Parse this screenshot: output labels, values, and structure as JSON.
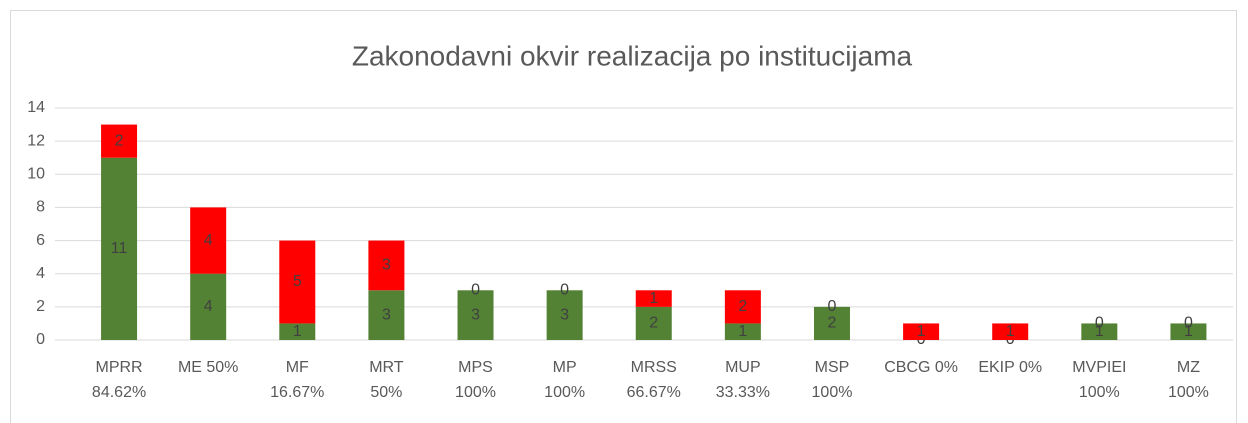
{
  "chart_data": {
    "type": "bar",
    "stacked": true,
    "title": "Zakonodavni okvir realizacija po institucijama",
    "categories": [
      [
        "MPRR",
        "84.62%"
      ],
      [
        "ME 50%"
      ],
      [
        "MF",
        "16.67%"
      ],
      [
        "MRT",
        "50%"
      ],
      [
        "MPS",
        "100%"
      ],
      [
        "MP",
        "100%"
      ],
      [
        "MRSS",
        "66.67%"
      ],
      [
        "MUP",
        "33.33%"
      ],
      [
        "MSP",
        "100%"
      ],
      [
        "CBCG 0%"
      ],
      [
        "EKIP 0%"
      ],
      [
        "MVPIEI",
        "100%"
      ],
      [
        "MZ",
        "100%"
      ]
    ],
    "series": [
      {
        "color": "#548235",
        "values": [
          11,
          4,
          1,
          3,
          3,
          3,
          2,
          1,
          2,
          0,
          0,
          1,
          1
        ]
      },
      {
        "color": "#ff0000",
        "values": [
          2,
          4,
          5,
          3,
          0,
          0,
          1,
          2,
          0,
          1,
          1,
          0,
          0
        ]
      }
    ],
    "ylim": [
      0,
      14
    ],
    "yticks": [
      0,
      2,
      4,
      6,
      8,
      10,
      12,
      14
    ],
    "grid": true
  }
}
